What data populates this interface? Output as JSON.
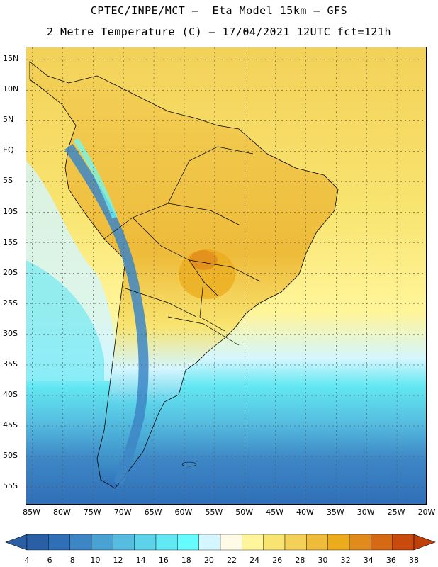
{
  "title": {
    "line1": "CPTEC/INPE/MCT –  Eta Model 15km – GFS",
    "line2": "2 Metre Temperature (C) – 17/04/2021 12UTC fct=121h"
  },
  "map": {
    "region": "South America",
    "lat_range": [
      -58,
      17
    ],
    "lon_range": [
      -86,
      -20
    ],
    "lat_ticks": [
      {
        "value": 15,
        "label": "15N"
      },
      {
        "value": 10,
        "label": "10N"
      },
      {
        "value": 5,
        "label": "5N"
      },
      {
        "value": 0,
        "label": "EQ"
      },
      {
        "value": -5,
        "label": "5S"
      },
      {
        "value": -10,
        "label": "10S"
      },
      {
        "value": -15,
        "label": "15S"
      },
      {
        "value": -20,
        "label": "20S"
      },
      {
        "value": -25,
        "label": "25S"
      },
      {
        "value": -30,
        "label": "30S"
      },
      {
        "value": -35,
        "label": "35S"
      },
      {
        "value": -40,
        "label": "40S"
      },
      {
        "value": -45,
        "label": "45S"
      },
      {
        "value": -50,
        "label": "50S"
      },
      {
        "value": -55,
        "label": "55S"
      }
    ],
    "lon_ticks": [
      {
        "value": -85,
        "label": "85W"
      },
      {
        "value": -80,
        "label": "80W"
      },
      {
        "value": -75,
        "label": "75W"
      },
      {
        "value": -70,
        "label": "70W"
      },
      {
        "value": -65,
        "label": "65W"
      },
      {
        "value": -60,
        "label": "60W"
      },
      {
        "value": -55,
        "label": "55W"
      },
      {
        "value": -50,
        "label": "50W"
      },
      {
        "value": -45,
        "label": "45W"
      },
      {
        "value": -40,
        "label": "40W"
      },
      {
        "value": -35,
        "label": "35W"
      },
      {
        "value": -30,
        "label": "30W"
      },
      {
        "value": -25,
        "label": "25W"
      },
      {
        "value": -20,
        "label": "20W"
      }
    ]
  },
  "colorbar": {
    "levels": [
      "4",
      "6",
      "8",
      "10",
      "12",
      "14",
      "16",
      "18",
      "20",
      "22",
      "24",
      "26",
      "28",
      "30",
      "32",
      "34",
      "36",
      "38"
    ],
    "colors": [
      "#2a5fa5",
      "#2f6fb8",
      "#3d86c5",
      "#49a2d4",
      "#56bde0",
      "#5dd3ea",
      "#62e8f2",
      "#66fbff",
      "#d4f6ff",
      "#fffbe6",
      "#fff59a",
      "#f8e470",
      "#f3d158",
      "#eebb3a",
      "#ebab1c",
      "#e08b1c",
      "#d66a14",
      "#c84a0c"
    ],
    "low_color": "#2a5fa5",
    "high_color": "#c0400a"
  },
  "colors": {
    "ocean_north": "#f3d158",
    "ocean_mid": "#fff59a",
    "ocean_south": "#56bde0",
    "land_warm": "#f3d158",
    "land_hot": "#eebb3a",
    "andes_cold": "#3d86c5"
  }
}
